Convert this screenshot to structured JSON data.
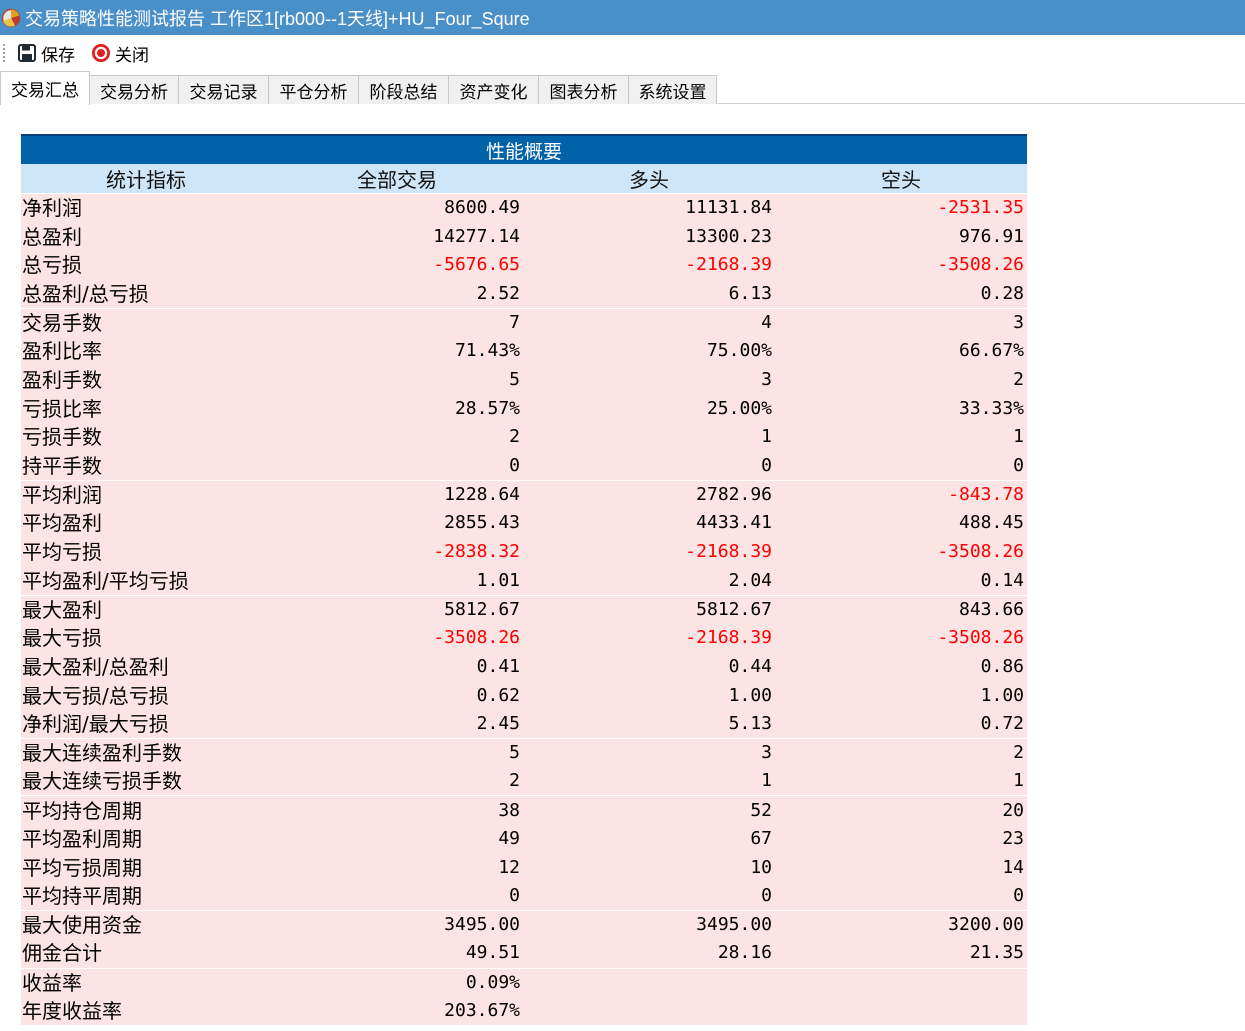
{
  "window": {
    "title": "交易策略性能测试报告 工作区1[rb000--1天线]+HU_Four_Squre",
    "icon": "chart-app-icon"
  },
  "toolbar": {
    "save_label": "保存",
    "close_label": "关闭"
  },
  "tabs": [
    {
      "label": "交易汇总",
      "active": true
    },
    {
      "label": "交易分析",
      "active": false
    },
    {
      "label": "交易记录",
      "active": false
    },
    {
      "label": "平仓分析",
      "active": false
    },
    {
      "label": "阶段总结",
      "active": false
    },
    {
      "label": "资产变化",
      "active": false
    },
    {
      "label": "图表分析",
      "active": false
    },
    {
      "label": "系统设置",
      "active": false
    }
  ],
  "table": {
    "caption": "性能概要",
    "headers": [
      "统计指标",
      "全部交易",
      "多头",
      "空头"
    ],
    "colors": {
      "caption_bg": "#0062a8",
      "header_bg": "#cfe6f8",
      "row_bg": "#fde4e4",
      "negative": "#ff0000"
    },
    "rows": [
      {
        "label": "净利润",
        "values": [
          "8600.49",
          "11131.84",
          "-2531.35"
        ],
        "sep": true
      },
      {
        "label": "总盈利",
        "values": [
          "14277.14",
          "13300.23",
          "976.91"
        ]
      },
      {
        "label": "总亏损",
        "values": [
          "-5676.65",
          "-2168.39",
          "-3508.26"
        ]
      },
      {
        "label": "总盈利/总亏损",
        "values": [
          "2.52",
          "6.13",
          "0.28"
        ]
      },
      {
        "label": "交易手数",
        "values": [
          "7",
          "4",
          "3"
        ],
        "sep": true
      },
      {
        "label": "盈利比率",
        "values": [
          "71.43%",
          "75.00%",
          "66.67%"
        ]
      },
      {
        "label": "盈利手数",
        "values": [
          "5",
          "3",
          "2"
        ]
      },
      {
        "label": "亏损比率",
        "values": [
          "28.57%",
          "25.00%",
          "33.33%"
        ]
      },
      {
        "label": "亏损手数",
        "values": [
          "2",
          "1",
          "1"
        ]
      },
      {
        "label": "持平手数",
        "values": [
          "0",
          "0",
          "0"
        ]
      },
      {
        "label": "平均利润",
        "values": [
          "1228.64",
          "2782.96",
          "-843.78"
        ],
        "sep": true
      },
      {
        "label": "平均盈利",
        "values": [
          "2855.43",
          "4433.41",
          "488.45"
        ]
      },
      {
        "label": "平均亏损",
        "values": [
          "-2838.32",
          "-2168.39",
          "-3508.26"
        ]
      },
      {
        "label": "平均盈利/平均亏损",
        "values": [
          "1.01",
          "2.04",
          "0.14"
        ]
      },
      {
        "label": "最大盈利",
        "values": [
          "5812.67",
          "5812.67",
          "843.66"
        ],
        "sep": true
      },
      {
        "label": "最大亏损",
        "values": [
          "-3508.26",
          "-2168.39",
          "-3508.26"
        ]
      },
      {
        "label": "最大盈利/总盈利",
        "values": [
          "0.41",
          "0.44",
          "0.86"
        ]
      },
      {
        "label": "最大亏损/总亏损",
        "values": [
          "0.62",
          "1.00",
          "1.00"
        ]
      },
      {
        "label": "净利润/最大亏损",
        "values": [
          "2.45",
          "5.13",
          "0.72"
        ]
      },
      {
        "label": "最大连续盈利手数",
        "values": [
          "5",
          "3",
          "2"
        ],
        "sep": true
      },
      {
        "label": "最大连续亏损手数",
        "values": [
          "2",
          "1",
          "1"
        ]
      },
      {
        "label": "平均持仓周期",
        "values": [
          "38",
          "52",
          "20"
        ],
        "sep": true
      },
      {
        "label": "平均盈利周期",
        "values": [
          "49",
          "67",
          "23"
        ]
      },
      {
        "label": "平均亏损周期",
        "values": [
          "12",
          "10",
          "14"
        ]
      },
      {
        "label": "平均持平周期",
        "values": [
          "0",
          "0",
          "0"
        ]
      },
      {
        "label": "最大使用资金",
        "values": [
          "3495.00",
          "3495.00",
          "3200.00"
        ],
        "sep": true
      },
      {
        "label": "佣金合计",
        "values": [
          "49.51",
          "28.16",
          "21.35"
        ]
      },
      {
        "label": "收益率",
        "values": [
          "0.09%",
          "",
          ""
        ],
        "sep": true
      },
      {
        "label": "年度收益率",
        "values": [
          "203.67%",
          "",
          ""
        ]
      }
    ]
  }
}
